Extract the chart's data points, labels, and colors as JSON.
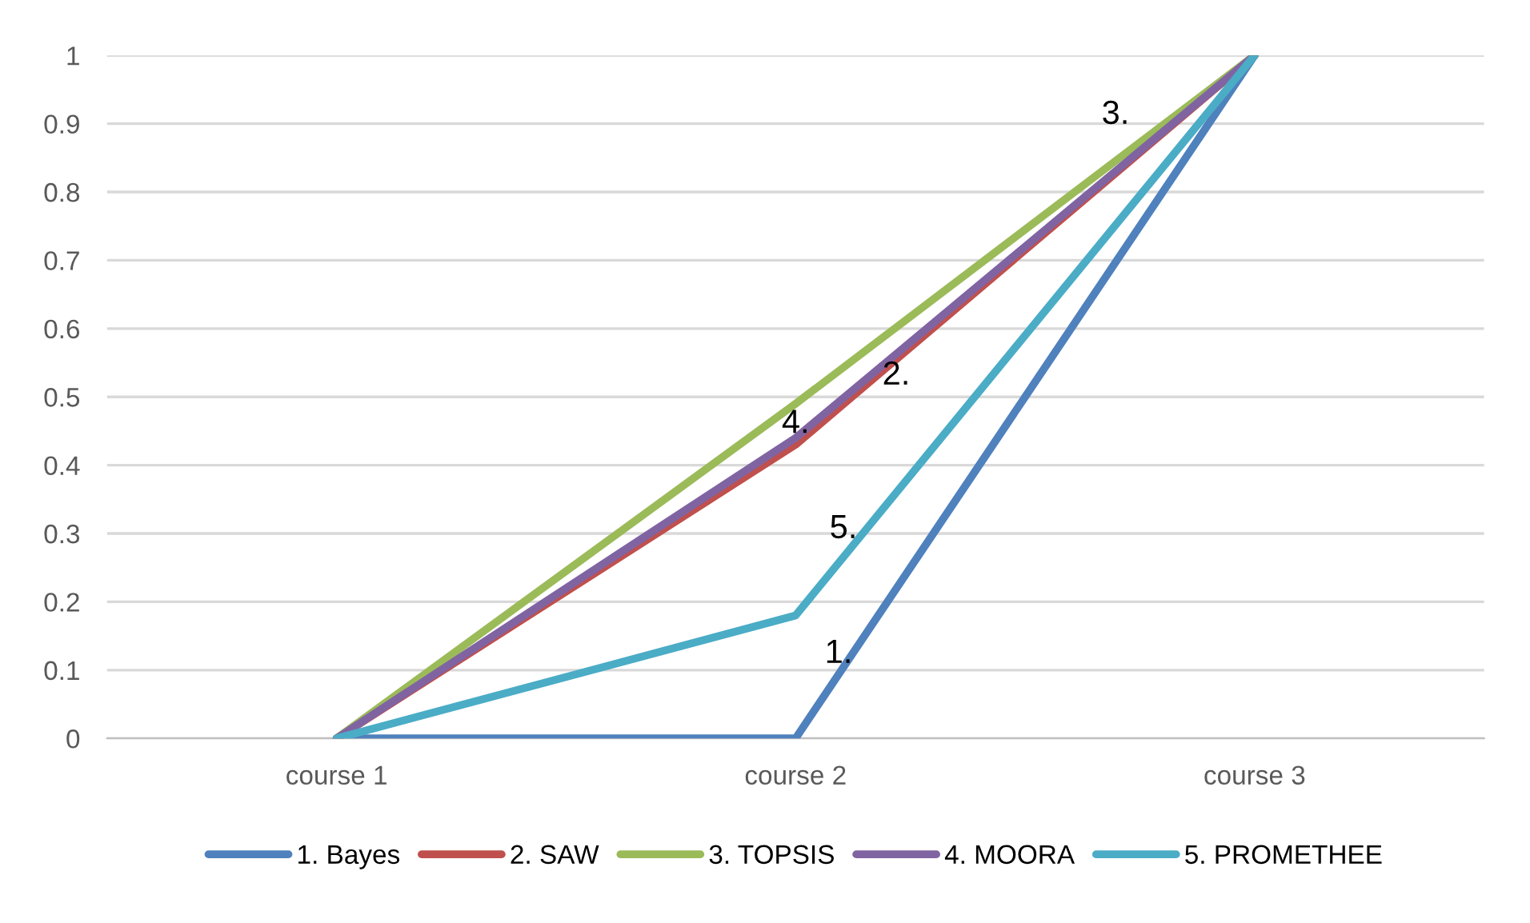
{
  "chart_data": {
    "type": "line",
    "categories": [
      "course 1",
      "course 2",
      "course 3"
    ],
    "series": [
      {
        "name": "1. Bayes",
        "color": "#4f81bd",
        "values": [
          0,
          0,
          1
        ]
      },
      {
        "name": "2. SAW",
        "color": "#c0504d",
        "values": [
          0,
          0.43,
          1
        ]
      },
      {
        "name": "3. TOPSIS",
        "color": "#9bbb59",
        "values": [
          0,
          0.49,
          1
        ]
      },
      {
        "name": "4. MOORA",
        "color": "#8064a2",
        "values": [
          0,
          0.44,
          1
        ]
      },
      {
        "name": "5. PROMETHEE",
        "color": "#4bacc6",
        "values": [
          0,
          0.18,
          1
        ]
      }
    ],
    "ylim": [
      0,
      1
    ],
    "yticks": [
      0,
      0.1,
      0.2,
      0.3,
      0.4,
      0.5,
      0.6,
      0.7,
      0.8,
      0.9,
      1
    ],
    "grid": "y",
    "legend": "bottom",
    "marker": "none",
    "annotations": [
      "1.",
      "2.",
      "3.",
      {
        "text": "4.",
        "x": "course 2",
        "y": 0.46
      },
      "5."
    ]
  }
}
